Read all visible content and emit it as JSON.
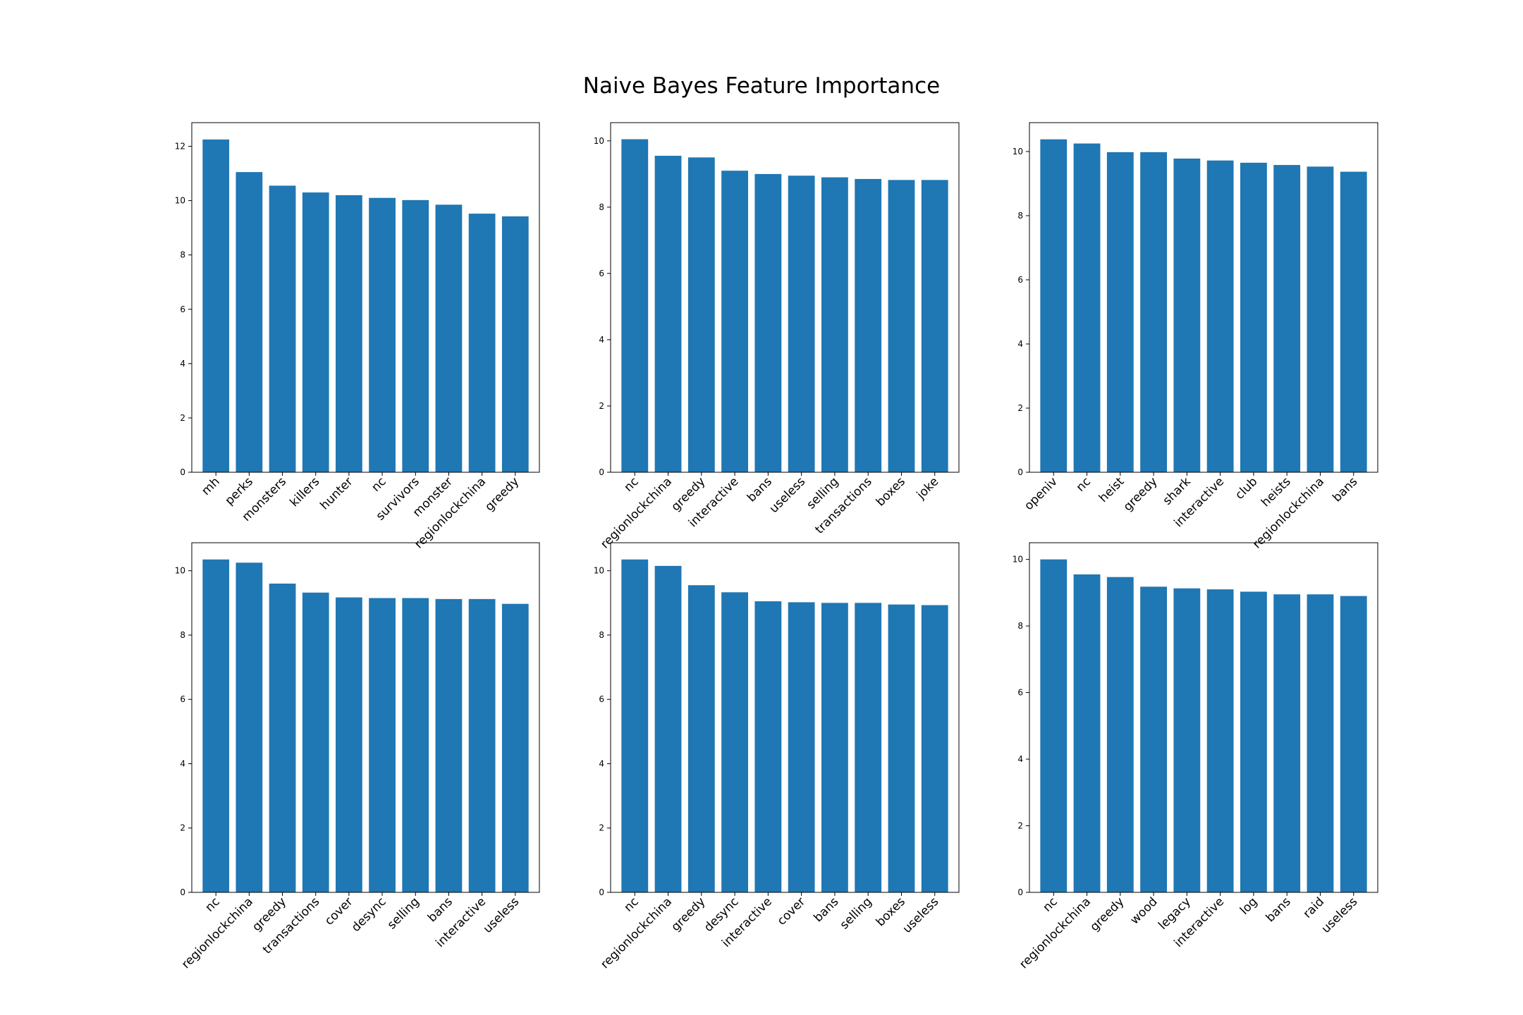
{
  "figure": {
    "title": "Naive Bayes Feature Importance"
  },
  "colors": {
    "bar": "#1f77b4",
    "axis": "#000000",
    "background": "#ffffff"
  },
  "chart_data": [
    {
      "type": "bar",
      "categories": [
        "mh",
        "perks",
        "monsters",
        "killers",
        "hunter",
        "nc",
        "survivors",
        "monster",
        "regionlockchina",
        "greedy"
      ],
      "values": [
        12.25,
        11.05,
        10.55,
        10.3,
        10.2,
        10.1,
        10.02,
        9.85,
        9.52,
        9.42
      ],
      "ylim": [
        0,
        12.87
      ],
      "yticks": [
        0,
        2,
        4,
        6,
        8,
        10,
        12
      ],
      "grid": false
    },
    {
      "type": "bar",
      "categories": [
        "nc",
        "regionlockchina",
        "greedy",
        "interactive",
        "bans",
        "useless",
        "selling",
        "transactions",
        "boxes",
        "joke"
      ],
      "values": [
        10.05,
        9.55,
        9.5,
        9.1,
        9.0,
        8.95,
        8.9,
        8.85,
        8.82,
        8.82
      ],
      "ylim": [
        0,
        10.55
      ],
      "yticks": [
        0,
        2,
        4,
        6,
        8,
        10
      ],
      "grid": false
    },
    {
      "type": "bar",
      "categories": [
        "openiv",
        "nc",
        "heist",
        "greedy",
        "shark",
        "interactive",
        "club",
        "heists",
        "regionlockchina",
        "bans"
      ],
      "values": [
        10.38,
        10.25,
        9.98,
        9.98,
        9.78,
        9.72,
        9.65,
        9.58,
        9.53,
        9.37
      ],
      "ylim": [
        0,
        10.9
      ],
      "yticks": [
        0,
        2,
        4,
        6,
        8,
        10
      ],
      "grid": false
    },
    {
      "type": "bar",
      "categories": [
        "nc",
        "regionlockchina",
        "greedy",
        "transactions",
        "cover",
        "desync",
        "selling",
        "bans",
        "interactive",
        "useless"
      ],
      "values": [
        10.35,
        10.25,
        9.6,
        9.32,
        9.17,
        9.15,
        9.15,
        9.12,
        9.12,
        8.97
      ],
      "ylim": [
        0,
        10.87
      ],
      "yticks": [
        0,
        2,
        4,
        6,
        8,
        10
      ],
      "grid": false
    },
    {
      "type": "bar",
      "categories": [
        "nc",
        "regionlockchina",
        "greedy",
        "desync",
        "interactive",
        "cover",
        "bans",
        "selling",
        "boxes",
        "useless"
      ],
      "values": [
        10.35,
        10.15,
        9.55,
        9.33,
        9.05,
        9.02,
        9.0,
        9.0,
        8.95,
        8.93
      ],
      "ylim": [
        0,
        10.87
      ],
      "yticks": [
        0,
        2,
        4,
        6,
        8,
        10
      ],
      "grid": false
    },
    {
      "type": "bar",
      "categories": [
        "nc",
        "regionlockchina",
        "greedy",
        "wood",
        "legacy",
        "interactive",
        "log",
        "bans",
        "raid",
        "useless"
      ],
      "values": [
        10.0,
        9.55,
        9.47,
        9.18,
        9.13,
        9.1,
        9.03,
        8.95,
        8.95,
        8.9
      ],
      "ylim": [
        0,
        10.5
      ],
      "yticks": [
        0,
        2,
        4,
        6,
        8,
        10
      ],
      "grid": false
    }
  ]
}
